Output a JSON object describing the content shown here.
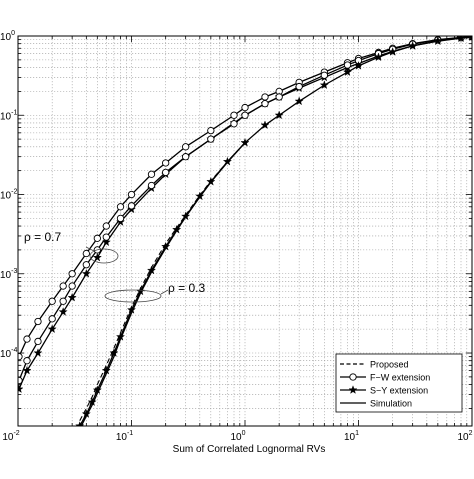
{
  "chart_data": {
    "type": "line",
    "xscale": "log",
    "yscale": "log",
    "xlim": [
      0.01,
      100
    ],
    "ylim": [
      1.2e-05,
      1
    ],
    "grid": true,
    "xlabel": "Sum of Correlated Lognormal RVs",
    "ylabel": "",
    "title": "",
    "x_ticks": [
      {
        "base": "10",
        "exp": "-2",
        "value": 0.01
      },
      {
        "base": "10",
        "exp": "-1",
        "value": 0.1
      },
      {
        "base": "10",
        "exp": "0",
        "value": 1
      },
      {
        "base": "10",
        "exp": "1",
        "value": 10
      },
      {
        "base": "10",
        "exp": "2",
        "value": 100
      }
    ],
    "y_ticks": [
      {
        "base": "10",
        "exp": "-4",
        "value": 0.0001
      },
      {
        "base": "10",
        "exp": "-3",
        "value": 0.001
      },
      {
        "base": "10",
        "exp": "-2",
        "value": 0.01
      },
      {
        "base": "10",
        "exp": "-1",
        "value": 0.1
      },
      {
        "base": "10",
        "exp": "0",
        "value": 1
      }
    ],
    "annotations": [
      {
        "text": "ρ = 0.7",
        "x": 0.03,
        "y": 0.0017
      },
      {
        "text": "ρ = 0.3",
        "x": 0.2,
        "y": 0.00055
      }
    ],
    "legend": {
      "position": "bottom-right",
      "entries": [
        {
          "label": "Proposed",
          "style": "dashed",
          "marker": "none"
        },
        {
          "label": "F−W extension",
          "style": "solid",
          "marker": "circle"
        },
        {
          "label": "S−Y extension",
          "style": "solid",
          "marker": "star"
        },
        {
          "label": "Simulation",
          "style": "solid",
          "marker": "none"
        }
      ]
    },
    "series": [
      {
        "group": "rho=0.7",
        "method": "F-W extension",
        "style": "solid",
        "marker": "circle",
        "x": [
          0.0102,
          0.012,
          0.015,
          0.02,
          0.025,
          0.03,
          0.04,
          0.05,
          0.06,
          0.08,
          0.1,
          0.15,
          0.2,
          0.3,
          0.5,
          0.8,
          1,
          1.5,
          2,
          3,
          5,
          8,
          10,
          15,
          20,
          30,
          50,
          80,
          100
        ],
        "y": [
          9e-05,
          0.00015,
          0.00025,
          0.00045,
          0.0007,
          0.001,
          0.0018,
          0.0028,
          0.004,
          0.007,
          0.01,
          0.018,
          0.025,
          0.04,
          0.064,
          0.1,
          0.125,
          0.17,
          0.2,
          0.26,
          0.35,
          0.46,
          0.52,
          0.62,
          0.7,
          0.8,
          0.9,
          0.96,
          0.98
        ]
      },
      {
        "group": "rho=0.7",
        "method": "S-Y extension",
        "style": "solid",
        "marker": "star",
        "x": [
          0.0102,
          0.012,
          0.015,
          0.02,
          0.025,
          0.03,
          0.04,
          0.05,
          0.06,
          0.08,
          0.1,
          0.15,
          0.2,
          0.3,
          0.5,
          0.8,
          1,
          1.5,
          2,
          3,
          5,
          8,
          10,
          15,
          20,
          30,
          50,
          80,
          100
        ],
        "y": [
          3.5e-05,
          6e-05,
          0.0001,
          0.0002,
          0.00033,
          0.0005,
          0.001,
          0.0016,
          0.0025,
          0.0045,
          0.0065,
          0.012,
          0.018,
          0.03,
          0.05,
          0.08,
          0.1,
          0.14,
          0.17,
          0.22,
          0.3,
          0.4,
          0.45,
          0.56,
          0.64,
          0.75,
          0.86,
          0.94,
          0.97
        ]
      },
      {
        "group": "rho=0.3",
        "method": "F-W extension",
        "style": "solid",
        "marker": "circle",
        "x": [
          0.0102,
          0.012,
          0.015,
          0.02,
          0.025,
          0.03,
          0.04,
          0.05,
          0.06,
          0.08,
          0.1,
          0.15,
          0.2,
          0.3,
          0.5,
          0.8,
          1,
          1.5,
          2,
          3,
          5,
          8,
          10,
          15,
          20,
          30,
          50,
          80,
          100
        ],
        "y": [
          4.5e-05,
          8e-05,
          0.00014,
          0.00027,
          0.00045,
          0.0007,
          0.0013,
          0.002,
          0.0029,
          0.005,
          0.0072,
          0.013,
          0.019,
          0.03,
          0.05,
          0.078,
          0.1,
          0.14,
          0.17,
          0.23,
          0.32,
          0.43,
          0.49,
          0.6,
          0.68,
          0.79,
          0.89,
          0.95,
          0.98
        ]
      },
      {
        "group": "rho=0.3",
        "method": "S-Y extension",
        "style": "solid",
        "marker": "star",
        "x": [
          0.035,
          0.04,
          0.045,
          0.05,
          0.06,
          0.07,
          0.08,
          0.1,
          0.12,
          0.15,
          0.2,
          0.25,
          0.3,
          0.4,
          0.5,
          0.7,
          1,
          1.5,
          2,
          3,
          5,
          8,
          10,
          15,
          20,
          30,
          50,
          80,
          100
        ],
        "y": [
          1.2e-05,
          1.7e-05,
          2.4e-05,
          3.4e-05,
          6e-05,
          0.0001,
          0.00016,
          0.00035,
          0.0006,
          0.0011,
          0.0022,
          0.0036,
          0.0053,
          0.0095,
          0.0145,
          0.026,
          0.045,
          0.075,
          0.1,
          0.15,
          0.24,
          0.35,
          0.42,
          0.54,
          0.63,
          0.75,
          0.87,
          0.94,
          0.97
        ]
      },
      {
        "group": "rho=0.3",
        "method": "Proposed",
        "style": "dashed",
        "marker": "none",
        "x": [
          0.035,
          0.04,
          0.045,
          0.05,
          0.06,
          0.07,
          0.08,
          0.1,
          0.12,
          0.15,
          0.2,
          0.25,
          0.3,
          0.4,
          0.5,
          0.7,
          1
        ],
        "y": [
          1.4e-05,
          2e-05,
          2.8e-05,
          4e-05,
          7e-05,
          0.000115,
          0.00018,
          0.00038,
          0.00065,
          0.0012,
          0.0024,
          0.0038,
          0.0055,
          0.0098,
          0.0148,
          0.026,
          0.045
        ]
      },
      {
        "group": "rho=0.3",
        "method": "Simulation",
        "style": "solid",
        "marker": "none",
        "x": [
          0.035,
          0.04,
          0.045,
          0.05,
          0.06,
          0.07,
          0.08,
          0.1,
          0.12,
          0.15,
          0.2,
          0.25,
          0.3,
          0.4,
          0.5,
          0.7,
          1
        ],
        "y": [
          1.1e-05,
          1.6e-05,
          2.2e-05,
          3.1e-05,
          5.5e-05,
          9e-05,
          0.00015,
          0.00032,
          0.00057,
          0.00105,
          0.0021,
          0.0035,
          0.0052,
          0.0093,
          0.0143,
          0.0255,
          0.045
        ]
      }
    ]
  }
}
